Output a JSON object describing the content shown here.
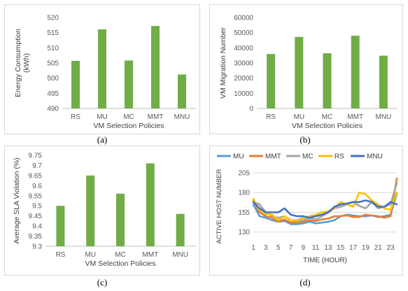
{
  "chart_data": [
    {
      "id": "a",
      "type": "bar",
      "caption": "(a)",
      "categories": [
        "RS",
        "MU",
        "MC",
        "MMT",
        "MNU"
      ],
      "values": [
        505.7,
        516.1,
        505.8,
        517.2,
        501.2
      ],
      "xlabel": "VM Selection Policies",
      "ylabel": "Energy Consumption (kWh)",
      "ylabel_lines": [
        "Energy Consumption",
        "(kWh)"
      ],
      "ylim": [
        490,
        520
      ],
      "yticks": [
        490,
        495,
        500,
        505,
        510,
        515,
        520
      ],
      "ytick_labels": [
        "490",
        "495",
        "500",
        "505",
        "510",
        "515",
        "520"
      ],
      "grid": false,
      "color": "#70ad47"
    },
    {
      "id": "b",
      "type": "bar",
      "caption": "(b)",
      "categories": [
        "RS",
        "MU",
        "MC",
        "MMT",
        "MNU"
      ],
      "values": [
        35900,
        47200,
        36400,
        48000,
        34800
      ],
      "xlabel": "VM Selection Policies",
      "ylabel": "VM Migration Number",
      "ylabel_lines": [
        "VM  Migration Number"
      ],
      "ylim": [
        0,
        60000
      ],
      "yticks": [
        0,
        10000,
        20000,
        30000,
        40000,
        50000,
        60000
      ],
      "ytick_labels": [
        "0",
        "10000",
        "20000",
        "30000",
        "40000",
        "50000",
        "60000"
      ],
      "grid": false,
      "color": "#70ad47"
    },
    {
      "id": "c",
      "type": "bar",
      "caption": "(c)",
      "categories": [
        "RS",
        "MU",
        "MC",
        "MMT",
        "MNU"
      ],
      "values": [
        9.5,
        9.65,
        9.56,
        9.71,
        9.46
      ],
      "xlabel": "VM Selection Policies",
      "ylabel": "Average SLA Violation (%)",
      "ylabel_lines": [
        "Average SLA Violation (%)"
      ],
      "ylim": [
        9.3,
        9.75
      ],
      "yticks": [
        9.3,
        9.35,
        9.4,
        9.45,
        9.5,
        9.55,
        9.6,
        9.65,
        9.7,
        9.75
      ],
      "ytick_labels": [
        "9.3",
        "9.35",
        "9.4",
        "9.45",
        "9.5",
        "9.55",
        "9.6",
        "9.65",
        "9.7",
        "9.75"
      ],
      "grid": false,
      "color": "#70ad47"
    },
    {
      "id": "d",
      "type": "line",
      "caption": "(d)",
      "xlabel": "TIME (HOUR)",
      "ylabel": "ACTIVE HOST NUMBER",
      "ylabel_lines": [
        "ACTIVE HOST NUMBER"
      ],
      "x": [
        1,
        2,
        3,
        4,
        5,
        6,
        7,
        8,
        9,
        10,
        11,
        12,
        13,
        14,
        15,
        16,
        17,
        18,
        19,
        20,
        21,
        22,
        23,
        24
      ],
      "xticks": [
        1,
        3,
        5,
        7,
        9,
        11,
        13,
        15,
        17,
        19,
        21,
        23
      ],
      "xtick_labels": [
        "1",
        "3",
        "5",
        "7",
        "9",
        "11",
        "13",
        "15",
        "17",
        "19",
        "21",
        "23"
      ],
      "ylim": [
        120,
        205
      ],
      "yticks": [
        130,
        155,
        180,
        205
      ],
      "ytick_labels": [
        "130",
        "155",
        "180",
        "205"
      ],
      "grid": true,
      "legend_position": "top",
      "series": [
        {
          "name": "MU",
          "color": "#5b9bd5",
          "values": [
            165,
            150,
            148,
            145,
            143,
            144,
            140,
            140,
            141,
            143,
            141,
            142,
            143,
            145,
            150,
            152,
            151,
            150,
            150,
            151,
            149,
            150,
            152,
            178
          ]
        },
        {
          "name": "MMT",
          "color": "#ed7d31",
          "values": [
            170,
            155,
            150,
            148,
            143,
            146,
            142,
            142,
            143,
            145,
            144,
            146,
            147,
            150,
            150,
            151,
            149,
            149,
            152,
            151,
            150,
            148,
            150,
            198
          ]
        },
        {
          "name": "MC",
          "color": "#a5a5a5",
          "values": [
            168,
            165,
            155,
            150,
            148,
            150,
            145,
            143,
            145,
            148,
            146,
            150,
            155,
            160,
            162,
            165,
            168,
            163,
            160,
            168,
            160,
            162,
            165,
            192
          ]
        },
        {
          "name": "RS",
          "color": "#ffc000",
          "values": [
            172,
            158,
            153,
            152,
            145,
            150,
            145,
            145,
            148,
            150,
            152,
            155,
            156,
            160,
            168,
            165,
            162,
            180,
            178,
            170,
            165,
            160,
            158,
            180
          ]
        },
        {
          "name": "MNU",
          "color": "#4472c4",
          "values": [
            168,
            160,
            155,
            155,
            155,
            160,
            152,
            150,
            150,
            148,
            150,
            152,
            155,
            162,
            165,
            166,
            168,
            168,
            170,
            168,
            162,
            162,
            168,
            165
          ]
        }
      ]
    }
  ]
}
